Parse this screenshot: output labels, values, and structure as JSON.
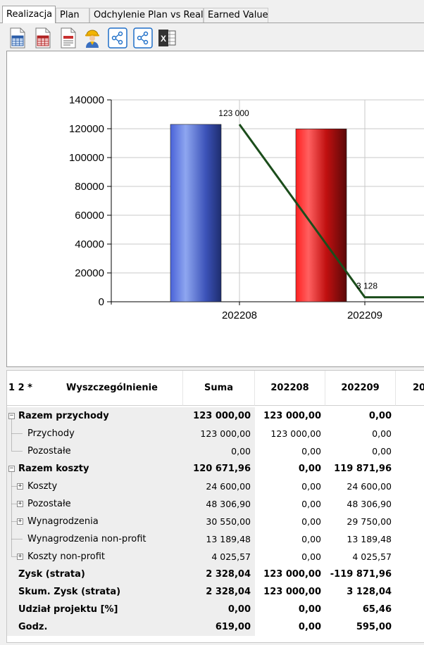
{
  "tabs": [
    "Realizacja",
    "Plan",
    "Odchylenie Plan vs Real.",
    "Earned Value"
  ],
  "toolbar": {
    "icons": [
      "table-blue-icon",
      "table-red-icon",
      "report-icon",
      "worker-icon",
      "share-icon",
      "share-alt-icon",
      "excel-icon"
    ]
  },
  "chart_data": {
    "type": "bar",
    "categories": [
      "202208",
      "202209"
    ],
    "y_ticks": [
      "0",
      "20000",
      "40000",
      "60000",
      "80000",
      "100000",
      "120000",
      "140000"
    ],
    "ylim": [
      0,
      140000
    ],
    "series": [
      {
        "values": [
          123000,
          null
        ],
        "color": "#3b56c8"
      },
      {
        "values": [
          null,
          119871.96
        ],
        "color": "#e01010"
      }
    ],
    "line": {
      "values": [
        123000,
        3128
      ],
      "color": "#1b4d1b"
    },
    "data_labels": [
      "123 000",
      "3 128"
    ],
    "grid": true
  },
  "grid": {
    "header": {
      "levels": "1 2 *",
      "desc": "Wyszczególnienie",
      "sum": "Suma",
      "col1": "202208",
      "col2": "202209",
      "col3": "20"
    },
    "rows": [
      {
        "label": "Razem przychody",
        "bold": true,
        "group": true,
        "sum": "123 000,00",
        "c1": "123 000,00",
        "c2": "0,00"
      },
      {
        "label": "Przychody",
        "bold": false,
        "sum": "123 000,00",
        "c1": "123 000,00",
        "c2": "0,00"
      },
      {
        "label": "Pozostałe",
        "bold": false,
        "sum": "0,00",
        "c1": "0,00",
        "c2": "0,00"
      },
      {
        "label": "Razem koszty",
        "bold": true,
        "group": true,
        "sum": "120 671,96",
        "c1": "0,00",
        "c2": "119 871,96"
      },
      {
        "label": "Koszty",
        "bold": false,
        "expand": true,
        "sum": "24 600,00",
        "c1": "0,00",
        "c2": "24 600,00"
      },
      {
        "label": "Pozostałe",
        "bold": false,
        "expand": true,
        "sum": "48 306,90",
        "c1": "0,00",
        "c2": "48 306,90"
      },
      {
        "label": "Wynagrodzenia",
        "bold": false,
        "expand": true,
        "sum": "30 550,00",
        "c1": "0,00",
        "c2": "29 750,00"
      },
      {
        "label": "Wynagrodzenia non-profit",
        "bold": false,
        "sum": "13 189,48",
        "c1": "0,00",
        "c2": "13 189,48"
      },
      {
        "label": "Koszty non-profit",
        "bold": false,
        "expand": true,
        "sum": "4 025,57",
        "c1": "0,00",
        "c2": "4 025,57"
      },
      {
        "label": "Zysk (strata)",
        "bold": true,
        "sum": "2 328,04",
        "c1": "123 000,00",
        "c2": "-119 871,96"
      },
      {
        "label": "Skum. Zysk (strata)",
        "bold": true,
        "sum": "2 328,04",
        "c1": "123 000,00",
        "c2": "3 128,04"
      },
      {
        "label": "Udział projektu [%]",
        "bold": true,
        "sum": "0,00",
        "c1": "0,00",
        "c2": "65,46"
      },
      {
        "label": "Godz.",
        "bold": true,
        "sum": "619,00",
        "c1": "0,00",
        "c2": "595,00"
      }
    ]
  }
}
